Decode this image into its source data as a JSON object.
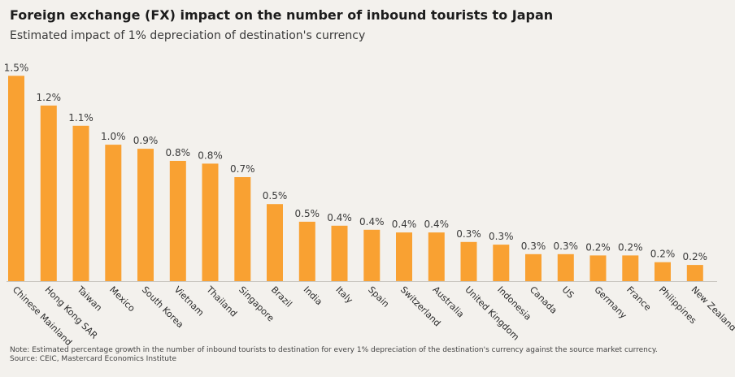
{
  "header": {
    "title": "Foreign exchange (FX) impact on the number of inbound tourists to Japan",
    "subtitle": "Estimated impact of 1% depreciation of destination's currency"
  },
  "footer": {
    "note": "Note: Estimated percentage growth in the number of inbound tourists to destination for every 1% depreciation of the  destination's currency against the source market currency.",
    "source": "Source: CEIC, Mastercard Economics Institute"
  },
  "chart_data": {
    "type": "bar",
    "categories": [
      "Chinese Mainland",
      "Hong Kong SAR",
      "Taiwan",
      "Mexico",
      "South Korea",
      "Vietnam",
      "Thailand",
      "Singapore",
      "Brazil",
      "India",
      "Italy",
      "Spain",
      "Switzerland",
      "Australia",
      "United Kingdom",
      "Indonesia",
      "Canada",
      "US",
      "Germany",
      "France",
      "Philippines",
      "New Zealand"
    ],
    "values": [
      1.5,
      1.2,
      1.1,
      1.0,
      0.9,
      0.8,
      0.8,
      0.7,
      0.5,
      0.5,
      0.4,
      0.4,
      0.4,
      0.4,
      0.3,
      0.3,
      0.3,
      0.3,
      0.2,
      0.2,
      0.2,
      0.2
    ],
    "labels": [
      "1.5%",
      "1.2%",
      "1.1%",
      "1.0%",
      "0.9%",
      "0.8%",
      "0.8%",
      "0.7%",
      "0.5%",
      "0.5%",
      "0.4%",
      "0.4%",
      "0.4%",
      "0.4%",
      "0.3%",
      "0.3%",
      "0.3%",
      "0.3%",
      "0.2%",
      "0.2%",
      "0.2%",
      "0.2%"
    ],
    "estimated_heights": [
      1.52,
      1.3,
      1.15,
      1.01,
      0.98,
      0.89,
      0.87,
      0.77,
      0.57,
      0.44,
      0.41,
      0.38,
      0.36,
      0.36,
      0.29,
      0.27,
      0.2,
      0.2,
      0.19,
      0.19,
      0.14,
      0.12
    ],
    "ylim": [
      0,
      1.6
    ],
    "bar_color": "#f9a132",
    "grid": false,
    "legend": "none"
  }
}
